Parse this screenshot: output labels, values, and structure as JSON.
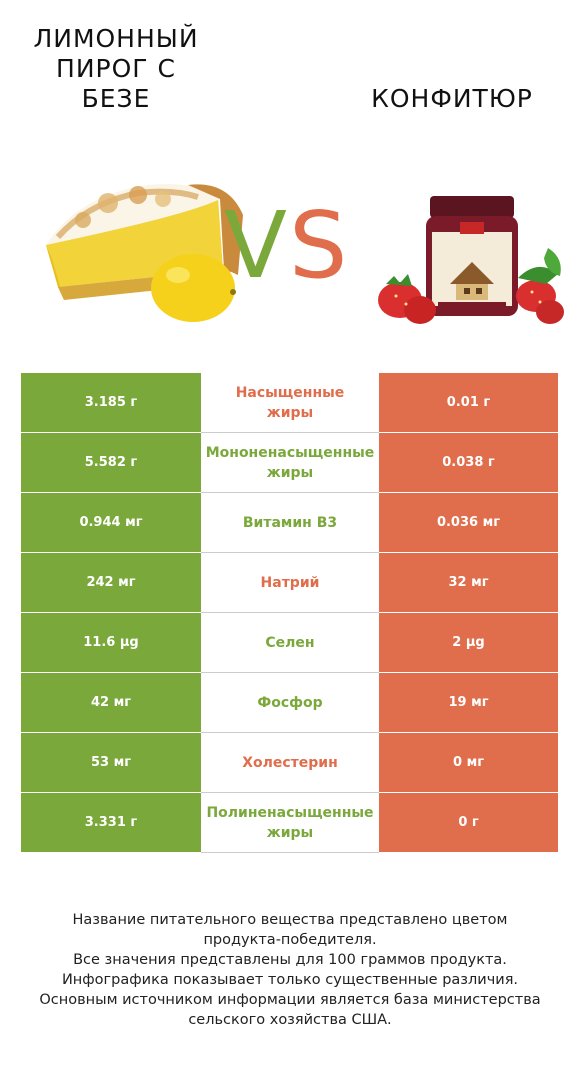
{
  "header": {
    "left_title_lines": [
      "ЛИМОННЫЙ",
      "ПИРОГ С",
      "БЕЗЕ"
    ],
    "right_title": "КОНФИТЮР",
    "vs_v": "V",
    "vs_s": "S"
  },
  "colors": {
    "winner_left": "#7aa83b",
    "winner_right": "#e06d4b"
  },
  "images": {
    "left": "lemon-meringue-pie-image",
    "right": "jam-jar-with-strawberries-image"
  },
  "rows": [
    {
      "left": "3.185 г",
      "nutrient_lines": [
        "Насыщенные",
        "жиры"
      ],
      "right": "0.01 г",
      "winner": "right"
    },
    {
      "left": "5.582 г",
      "nutrient_lines": [
        "Мононенасыщенные",
        "жиры"
      ],
      "right": "0.038 г",
      "winner": "left"
    },
    {
      "left": "0.944 мг",
      "nutrient_lines": [
        "Витамин B3"
      ],
      "right": "0.036 мг",
      "winner": "left"
    },
    {
      "left": "242 мг",
      "nutrient_lines": [
        "Натрий"
      ],
      "right": "32 мг",
      "winner": "right"
    },
    {
      "left": "11.6 µg",
      "nutrient_lines": [
        "Селен"
      ],
      "right": "2 µg",
      "winner": "left"
    },
    {
      "left": "42 мг",
      "nutrient_lines": [
        "Фосфор"
      ],
      "right": "19 мг",
      "winner": "left"
    },
    {
      "left": "53 мг",
      "nutrient_lines": [
        "Холестерин"
      ],
      "right": "0 мг",
      "winner": "right"
    },
    {
      "left": "3.331 г",
      "nutrient_lines": [
        "Полиненасыщенные",
        "жиры"
      ],
      "right": "0 г",
      "winner": "left"
    }
  ],
  "footer_lines": [
    "Название питательного вещества представлено цветом",
    "продукта-победителя.",
    "Все значения представлены для 100 граммов продукта.",
    "Инфографика показывает только существенные различия.",
    "Основным источником информации является база министерства",
    "сельского хозяйства США."
  ]
}
